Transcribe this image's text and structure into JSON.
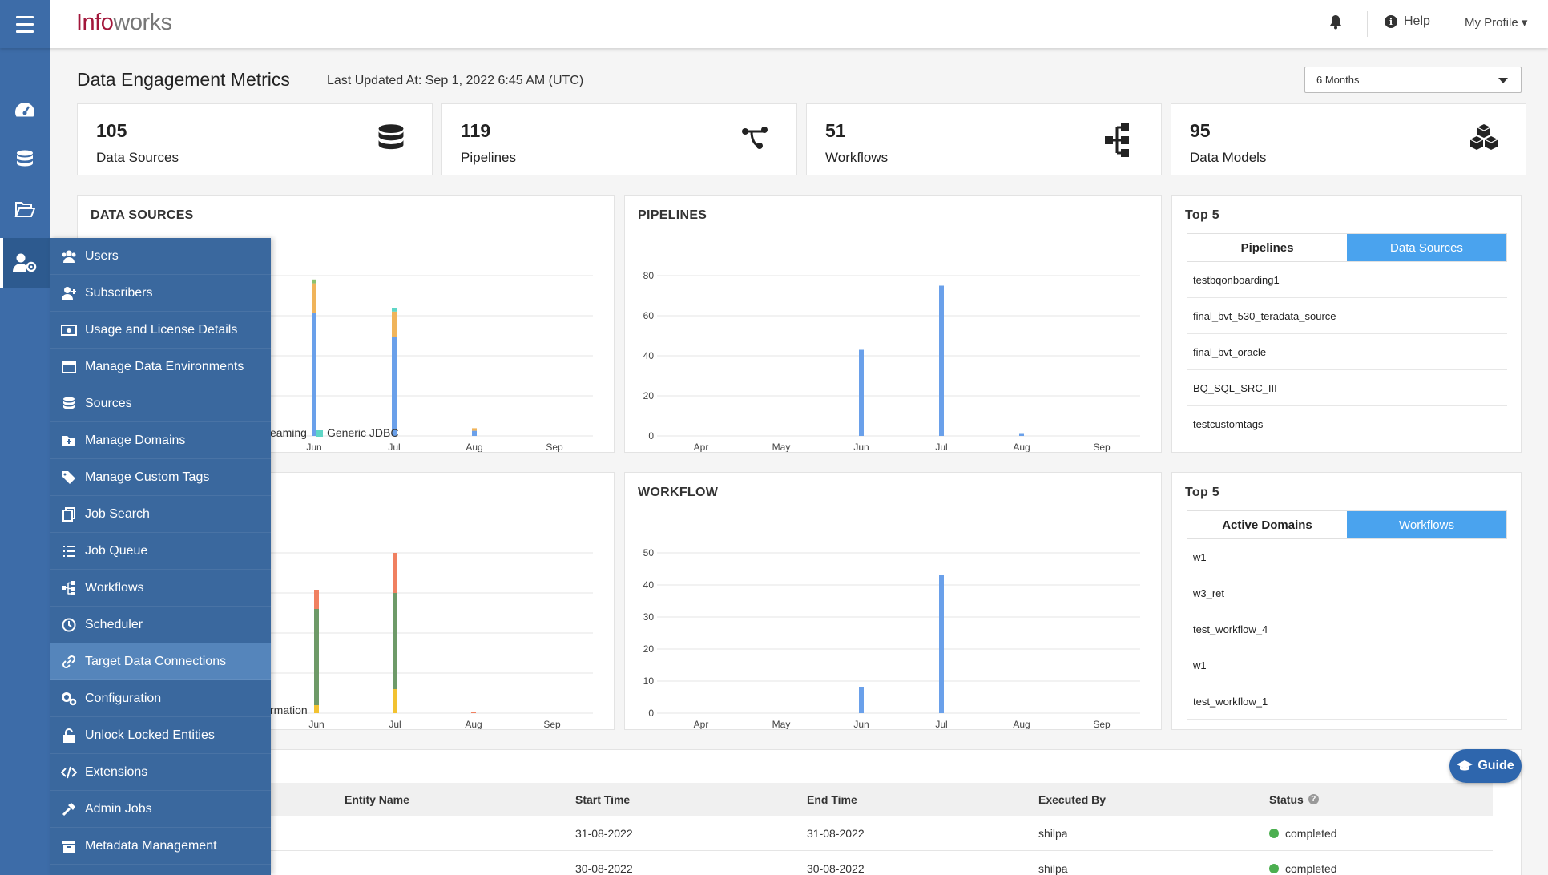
{
  "app": {
    "logo_a": "Info",
    "logo_b": "works"
  },
  "topbar": {
    "help_label": "Help",
    "profile_label": "My Profile"
  },
  "header": {
    "title": "Data Engagement Metrics",
    "last_updated": "Last Updated At: Sep 1, 2022 6:45 AM (UTC)",
    "range_value": "6 Months"
  },
  "stats": [
    {
      "number": "105",
      "label": "Data Sources",
      "icon": "database-icon"
    },
    {
      "number": "119",
      "label": "Pipelines",
      "icon": "pipeline-icon"
    },
    {
      "number": "51",
      "label": "Workflows",
      "icon": "workflow-icon"
    },
    {
      "number": "95",
      "label": "Data Models",
      "icon": "cubes-icon"
    }
  ],
  "menu": [
    {
      "label": "Users",
      "icon": "users-icon"
    },
    {
      "label": "Subscribers",
      "icon": "user-plus-icon"
    },
    {
      "label": "Usage and License Details",
      "icon": "license-icon"
    },
    {
      "label": "Manage Data Environments",
      "icon": "window-icon"
    },
    {
      "label": "Sources",
      "icon": "database-icon"
    },
    {
      "label": "Manage Domains",
      "icon": "folder-plus-icon"
    },
    {
      "label": "Manage Custom Tags",
      "icon": "tags-icon"
    },
    {
      "label": "Job Search",
      "icon": "copy-icon"
    },
    {
      "label": "Job Queue",
      "icon": "list-icon"
    },
    {
      "label": "Workflows",
      "icon": "workflow-icon"
    },
    {
      "label": "Scheduler",
      "icon": "clock-icon"
    },
    {
      "label": "Target Data Connections",
      "icon": "link-icon"
    },
    {
      "label": "Configuration",
      "icon": "gears-icon"
    },
    {
      "label": "Unlock Locked Entities",
      "icon": "unlock-icon"
    },
    {
      "label": "Extensions",
      "icon": "code-icon"
    },
    {
      "label": "Admin Jobs",
      "icon": "hammer-icon"
    },
    {
      "label": "Metadata Management",
      "icon": "archive-icon"
    }
  ],
  "cards": {
    "data_sources": "DATA SOURCES",
    "pipelines": "PIPELINES",
    "workflow": "WORKFLOW"
  },
  "chart_data": [
    {
      "type": "bar",
      "title": "DATA SOURCES",
      "categories": [
        "Jun",
        "Jul",
        "Aug",
        "Sep"
      ],
      "series": [
        {
          "name": "",
          "color": "#6aa0ea",
          "values": [
            96,
            77,
            4,
            0
          ]
        },
        {
          "name": "",
          "color": "#f0b45a",
          "values": [
            23,
            20,
            2,
            0
          ]
        },
        {
          "name": "",
          "color": "#8dc26f",
          "values": [
            3,
            0,
            0,
            0
          ]
        },
        {
          "name": "Generic JDBC",
          "color": "#5fd6c6",
          "values": [
            0,
            3,
            0,
            0
          ]
        }
      ],
      "legend_visible": [
        "eaming",
        "Generic JDBC"
      ]
    },
    {
      "type": "bar",
      "title": "PIPELINES",
      "categories": [
        "Apr",
        "May",
        "Jun",
        "Jul",
        "Aug",
        "Sep"
      ],
      "values": [
        0,
        0,
        43,
        75,
        1,
        0
      ],
      "ylim": [
        0,
        80
      ],
      "yticks": [
        "0",
        "20",
        "40",
        "60",
        "80"
      ],
      "color": "#6aa0ea"
    },
    {
      "type": "bar",
      "title": "",
      "categories": [
        "Jun",
        "Jul",
        "Aug",
        "Sep"
      ],
      "series": [
        {
          "name": "",
          "color": "#f2c231",
          "values": [
            5,
            15,
            0,
            0
          ]
        },
        {
          "name": "",
          "color": "#6e9a68",
          "values": [
            60,
            60,
            0,
            0
          ]
        },
        {
          "name": "",
          "color": "#f08060",
          "values": [
            12,
            25,
            0.5,
            0
          ]
        }
      ],
      "legend_visible": [
        "rmation"
      ]
    },
    {
      "type": "bar",
      "title": "WORKFLOW",
      "categories": [
        "Apr",
        "May",
        "Jun",
        "Jul",
        "Aug",
        "Sep"
      ],
      "values": [
        0,
        0,
        8,
        43,
        0,
        0
      ],
      "ylim": [
        0,
        50
      ],
      "yticks": [
        "0",
        "10",
        "20",
        "30",
        "40",
        "50"
      ],
      "color": "#6aa0ea"
    }
  ],
  "top5_a": {
    "title": "Top 5",
    "tabs": [
      "Pipelines",
      "Data Sources"
    ],
    "items": [
      "testbqonboarding1",
      "final_bvt_530_teradata_source",
      "final_bvt_oracle",
      "BQ_SQL_SRC_III",
      "testcustomtags"
    ]
  },
  "top5_b": {
    "title": "Top 5",
    "tabs": [
      "Active Domains",
      "Workflows"
    ],
    "items": [
      "w1",
      "w3_ret",
      "test_workflow_4",
      "w1",
      "test_workflow_1"
    ]
  },
  "guide": {
    "label": "Guide"
  },
  "table": {
    "headers": [
      "Entity Name",
      "Start Time",
      "End Time",
      "Executed By",
      "Status"
    ],
    "rows": [
      {
        "start": "31-08-2022",
        "end": "31-08-2022",
        "by": "shilpa",
        "status": "completed"
      },
      {
        "start": "30-08-2022",
        "end": "30-08-2022",
        "by": "shilpa",
        "status": "completed"
      }
    ]
  }
}
